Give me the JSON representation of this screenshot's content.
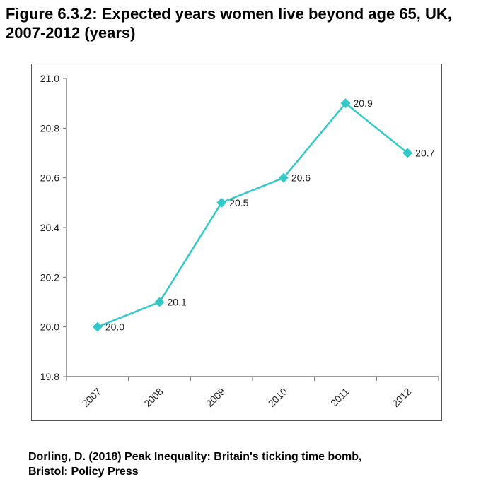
{
  "title": "Figure 6.3.2: Expected years women live beyond age 65, UK, 2007-2012 (years)",
  "source": [
    "Dorling, D. (2018) Peak Inequality: Britain's ticking time bomb,",
    "Bristol: Policy Press"
  ],
  "chart_data": {
    "type": "line",
    "title": "Figure 6.3.2: Expected years women live beyond age 65, UK, 2007-2012 (years)",
    "xlabel": "",
    "ylabel": "",
    "categories": [
      "2007",
      "2008",
      "2009",
      "2010",
      "2011",
      "2012"
    ],
    "series": [
      {
        "name": "Women",
        "values": [
          20.0,
          20.1,
          20.5,
          20.6,
          20.9,
          20.7
        ],
        "color": "#33c9c9",
        "marker": "diamond"
      }
    ],
    "data_labels": [
      "20.0",
      "20.1",
      "20.5",
      "20.6",
      "20.9",
      "20.7"
    ],
    "ylim": [
      19.8,
      21.0
    ],
    "yticks": [
      "19.8",
      "20.0",
      "20.2",
      "20.4",
      "20.6",
      "20.8",
      "21.0"
    ],
    "grid": false,
    "legend": "none"
  }
}
